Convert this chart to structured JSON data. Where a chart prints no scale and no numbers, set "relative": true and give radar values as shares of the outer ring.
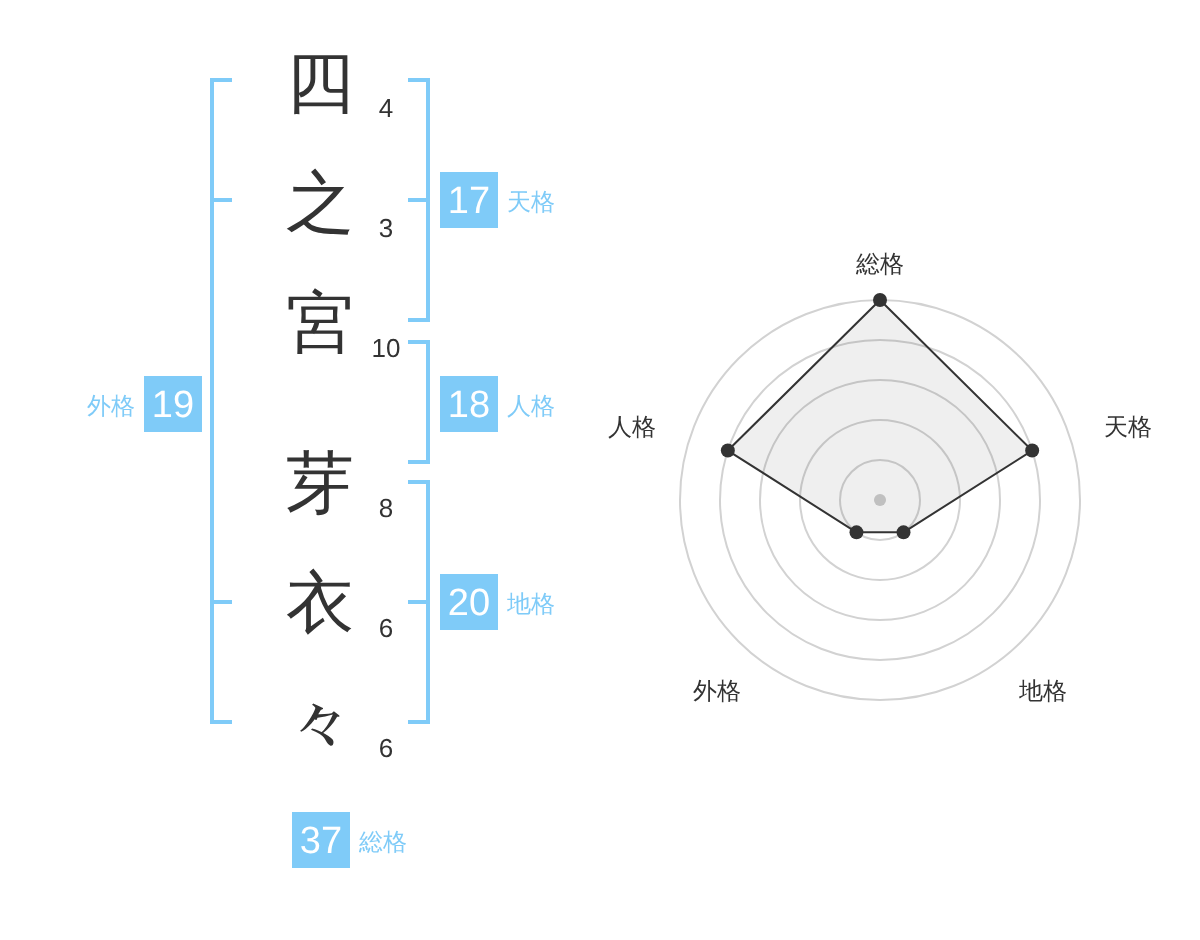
{
  "chart_data": [
    {
      "type": "other",
      "categories": [
        "四",
        "之",
        "宮",
        "芽",
        "衣",
        "々"
      ],
      "values": [
        4,
        3,
        10,
        8,
        6,
        6
      ],
      "data_labels": true,
      "color": "#7fcbf8",
      "annotations": [
        "17",
        "天格",
        "18",
        "人格",
        "20",
        "地格",
        "19",
        "外格",
        "37",
        "総格"
      ]
    },
    {
      "type": "radar",
      "categories": [
        "総格",
        "天格",
        "地格",
        "外格",
        "人格"
      ],
      "relative": true,
      "grid": true,
      "marker": "circle",
      "series": [
        {
          "color": "#333333",
          "values": [
            1,
            0.8,
            0.2,
            0.2,
            0.8
          ]
        }
      ]
    }
  ]
}
